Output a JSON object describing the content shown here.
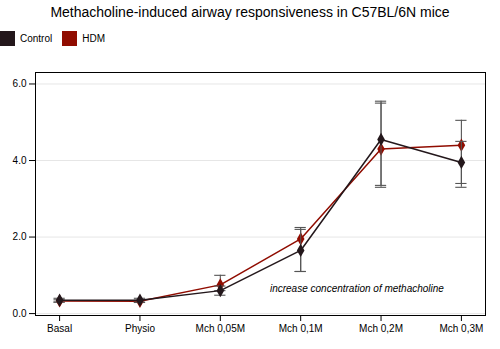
{
  "chart_data": {
    "type": "line",
    "title": "Methacholine-induced airway responsiveness in C57BL/6N mice",
    "categories": [
      "Basal",
      "Physio",
      "Mch 0,05M",
      "Mch 0,1M",
      "Mch 0,2M",
      "Mch 0,3M"
    ],
    "series": [
      {
        "name": "Control",
        "marker": "diamond",
        "values": [
          0.35,
          0.35,
          0.6,
          1.65,
          4.55,
          3.95
        ],
        "yerr_low": [
          0.05,
          0.05,
          0.12,
          0.55,
          1.2,
          0.55
        ],
        "yerr_high": [
          0.05,
          0.05,
          0.12,
          0.55,
          1.0,
          0.55
        ]
      },
      {
        "name": "HDM",
        "marker": "diamond",
        "values": [
          0.33,
          0.32,
          0.75,
          1.95,
          4.3,
          4.4
        ],
        "yerr_low": [
          0.03,
          0.03,
          0.15,
          0.85,
          1.0,
          1.1
        ],
        "yerr_high": [
          0.03,
          0.03,
          0.25,
          0.3,
          1.2,
          0.65
        ]
      }
    ],
    "ylim": [
      -0.05,
      6.3
    ],
    "yticks": [
      0,
      2,
      4,
      6
    ],
    "grid": true,
    "annotations": [
      {
        "text": "increase concentration of methacholine",
        "x": 3.7,
        "y": 0.65
      }
    ]
  }
}
